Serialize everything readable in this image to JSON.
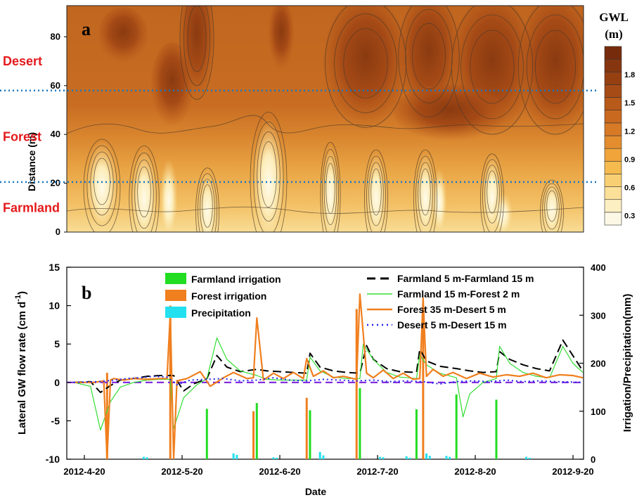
{
  "chart_data": [
    {
      "panel": "a",
      "type": "heatmap",
      "ylabel": "Distance (m)",
      "yticks": [
        "0",
        "20",
        "40",
        "60",
        "80"
      ],
      "ylim": [
        0,
        90
      ],
      "zones": [
        {
          "label": "Desert",
          "y": 70
        },
        {
          "label": "Forest",
          "y": 39
        },
        {
          "label": "Farmland",
          "y": 10
        }
      ],
      "boundaries": [
        58,
        20.5
      ],
      "colorbar": {
        "title_line1": "GWL",
        "title_line2": "(m)",
        "ticks": [
          "0.3",
          "0.6",
          "0.9",
          "1.2",
          "1.5",
          "1.8"
        ],
        "range": [
          0.2,
          2.1
        ],
        "colors": [
          "#fdf8e6",
          "#fcefc2",
          "#fbe09a",
          "#f9cf73",
          "#f5bb4f",
          "#f0a43a",
          "#e48d2e",
          "#d77a26",
          "#c9691f",
          "#b85a1a",
          "#a74b16",
          "#964012",
          "#86360f",
          "#762c0c"
        ]
      }
    },
    {
      "panel": "b",
      "type": "line",
      "xlabel": "Date",
      "ylabel": "Lateral GW flow rate (cm d",
      "ylabel_sup": "-1",
      "ylabel_close": ")",
      "y2label": "Irrigation/Precipitation(mm)",
      "xticks": [
        "2012-4-20",
        "2012-5-20",
        "2012-6-20",
        "2012-7-20",
        "2012-8-20",
        "2012-9-20"
      ],
      "xlim_days": [
        0,
        153
      ],
      "ylim": [
        -10,
        15
      ],
      "yticks": [
        "-10",
        "-5",
        "0",
        "5",
        "10",
        "15"
      ],
      "y2lim": [
        0,
        400
      ],
      "y2ticks": [
        "0",
        "100",
        "200",
        "300",
        "400"
      ],
      "legend_left": [
        "Farmland irrigation",
        "Forest irrigation",
        "Precipitation"
      ],
      "legend_right": [
        "Farmland  5 m-Farmland 15 m",
        "Farmland 15 m-Forest 2 m",
        "Forest 35 m-Desert 5 m",
        "Desert 5 m-Desert 15 m"
      ],
      "bars": [
        {
          "name": "Farmland irrigation",
          "color": "#22dd22",
          "x": [
            40,
            55,
            71,
            86,
            103,
            115,
            127
          ],
          "values": [
            105,
            117,
            102,
            148,
            104,
            135,
            124
          ]
        },
        {
          "name": "Forest irrigation",
          "color": "#f07f1e",
          "x": [
            10,
            29,
            54,
            70,
            85,
            105
          ],
          "values": [
            180,
            320,
            100,
            128,
            313,
            295
          ]
        },
        {
          "name": "Precipitation",
          "color": "#22e0f0",
          "x": [
            21,
            22,
            48,
            49,
            60,
            61,
            74,
            75,
            92,
            93,
            100,
            101,
            106,
            107,
            112,
            113,
            136,
            137
          ],
          "values": [
            5,
            4,
            12,
            9,
            4,
            3,
            15,
            8,
            5,
            4,
            6,
            3,
            12,
            7,
            7,
            5,
            5,
            3
          ]
        }
      ],
      "series": [
        {
          "name": "Farmland  5 m-Farmland 15 m",
          "color": "#000000",
          "style": "dash",
          "x": [
            0,
            5,
            8,
            11,
            14,
            18,
            22,
            26,
            30,
            33,
            36,
            40,
            43,
            46,
            50,
            55,
            58,
            62,
            66,
            70,
            71,
            74,
            78,
            82,
            86,
            88,
            90,
            94,
            98,
            103,
            104,
            106,
            110,
            115,
            119,
            123,
            127,
            128,
            131,
            135,
            139,
            143,
            147,
            150,
            153
          ],
          "y": [
            0,
            0.1,
            -1.3,
            -0.4,
            0.3,
            0.5,
            0.8,
            0.9,
            0.9,
            -1.1,
            -0.2,
            0.5,
            3.5,
            2,
            1.4,
            1.7,
            1.5,
            1.4,
            1.3,
            1.2,
            3.8,
            2,
            1.5,
            1.3,
            1.2,
            4.8,
            3,
            1.8,
            1.4,
            1.3,
            4.3,
            2.8,
            2.1,
            1.8,
            1.5,
            1.3,
            1.4,
            4.0,
            3,
            2.3,
            1.8,
            1.5,
            5.5,
            3.5,
            1.5
          ]
        },
        {
          "name": "Farmland 15 m-Forest 2 m",
          "color": "#33dd33",
          "style": "solid",
          "x": [
            0,
            5,
            8,
            11,
            14,
            18,
            22,
            26,
            29,
            30,
            33,
            37,
            40,
            43,
            46,
            50,
            55,
            58,
            62,
            66,
            70,
            71,
            74,
            78,
            82,
            86,
            87,
            90,
            94,
            98,
            103,
            104,
            106,
            110,
            115,
            117,
            119,
            123,
            127,
            128,
            131,
            135,
            139,
            143,
            147,
            150,
            153
          ],
          "y": [
            0,
            -0.5,
            -6.2,
            -2.5,
            -0.6,
            0,
            0.3,
            0.4,
            0.4,
            -6,
            -2,
            -0.3,
            0.5,
            5.8,
            3,
            1.5,
            0.9,
            0.4,
            0.3,
            0.3,
            0.3,
            3.3,
            1.5,
            0.7,
            0.5,
            0.5,
            5,
            3,
            1.3,
            0.7,
            0.5,
            3.6,
            2.3,
            1.2,
            0.6,
            -4.5,
            -1.5,
            0,
            0.5,
            4.7,
            2.5,
            1.3,
            0.8,
            0.6,
            4.7,
            2.5,
            1.3
          ]
        },
        {
          "name": "Forest 35 m-Desert 5 m",
          "color": "#f07f1e",
          "style": "solid",
          "x": [
            0,
            6,
            9,
            10,
            11,
            12,
            15,
            18,
            22,
            26,
            28,
            29,
            30,
            31,
            34,
            38,
            41,
            45,
            48,
            52,
            54,
            55,
            57,
            60,
            63,
            66,
            69,
            70,
            72,
            75,
            78,
            81,
            84,
            85,
            86,
            88,
            90,
            93,
            96,
            99,
            102,
            104,
            105,
            106,
            108,
            111,
            114,
            118,
            122,
            126,
            130,
            134,
            138,
            142,
            146,
            150,
            153
          ],
          "y": [
            0,
            0,
            0.2,
            -10,
            0.3,
            0.5,
            0.3,
            0.5,
            0.4,
            0.5,
            0.5,
            9,
            -10,
            0.2,
            0.5,
            1.4,
            -0.5,
            0.6,
            1.3,
            0.5,
            0.6,
            8.4,
            0.3,
            1.2,
            0.5,
            1.3,
            0.5,
            3.1,
            0.8,
            1.5,
            0.6,
            0.8,
            0.5,
            0.4,
            11.5,
            1.2,
            0.6,
            1.6,
            0.5,
            1.2,
            0.4,
            0.5,
            11,
            0.8,
            1.7,
            0.8,
            1.3,
            0.5,
            1.2,
            0.7,
            1.0,
            0.8,
            1.2,
            0.6,
            1.0,
            0.9,
            0.6
          ]
        },
        {
          "name": "Desert 5 m-Desert 15 m",
          "color": "#2222ee",
          "style": "dot",
          "x": [
            0,
            8,
            12,
            16,
            20,
            24,
            28,
            31,
            35,
            40,
            45,
            50,
            55,
            60,
            65,
            70,
            75,
            80,
            85,
            90,
            95,
            100,
            105,
            110,
            115,
            120,
            125,
            130,
            135,
            140,
            145,
            153
          ],
          "y": [
            0,
            0.1,
            0.3,
            0.5,
            0.6,
            0.8,
            0.7,
            -0.3,
            0.3,
            0.4,
            0.5,
            0.2,
            0.3,
            0.6,
            0.3,
            0.2,
            0.4,
            0.3,
            0.2,
            0.3,
            0.1,
            0.2,
            0.1,
            -0.2,
            0.1,
            0.2,
            0.1,
            0.3,
            0.1,
            0.2,
            0.1,
            0
          ]
        }
      ],
      "zero_line_color": "#7a22dd"
    }
  ]
}
